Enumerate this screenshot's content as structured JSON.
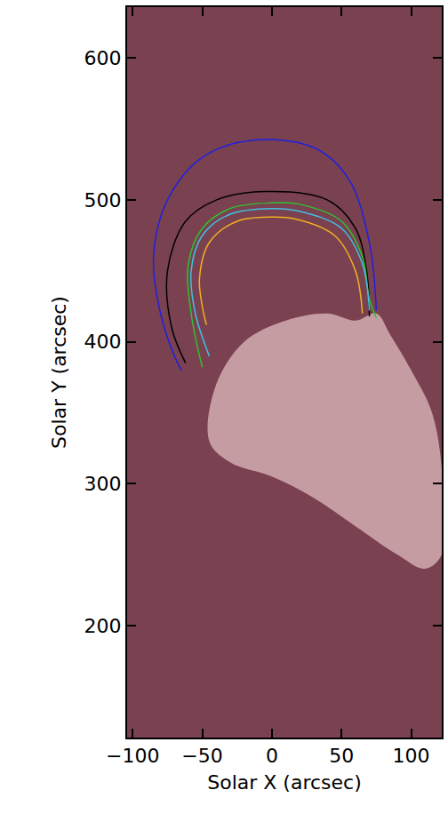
{
  "chart_data": {
    "type": "line",
    "x_label": "Solar X (arcsec)",
    "y_label": "Solar Y (arcsec)",
    "xlim": [
      -104,
      122
    ],
    "ylim": [
      121,
      636
    ],
    "xticks": [
      {
        "value": -100,
        "label": "−100"
      },
      {
        "value": -50,
        "label": "−50"
      },
      0,
      50,
      100
    ],
    "yticks": [
      200,
      300,
      400,
      500,
      600
    ],
    "grid": false,
    "series": [
      {
        "type": "area",
        "color": "#d9b3b8",
        "x": [
          -45,
          -40,
          -20,
          10,
          40,
          60,
          75,
          85,
          100,
          115,
          122,
          122,
          110,
          90,
          60,
          30,
          0,
          -30,
          -45
        ],
        "values": [
          330,
          370,
          400,
          415,
          420,
          415,
          420,
          405,
          380,
          350,
          310,
          250,
          240,
          250,
          270,
          290,
          305,
          315,
          330
        ]
      },
      {
        "color": "#2020e0",
        "x": [
          75,
          70,
          55,
          30,
          -15,
          -50,
          -75,
          -85,
          -80,
          -70,
          -65
        ],
        "values": [
          422,
          470,
          515,
          537,
          542,
          530,
          500,
          460,
          420,
          390,
          380
        ]
      },
      {
        "color": "#000000",
        "x": [
          70,
          68,
          60,
          40,
          -5,
          -40,
          -62,
          -75,
          -72,
          -62
        ],
        "values": [
          418,
          450,
          480,
          500,
          506,
          500,
          485,
          450,
          410,
          385
        ]
      },
      {
        "color": "#30c030",
        "x": [
          75,
          70,
          65,
          50,
          20,
          0,
          -30,
          -50,
          -60,
          -58,
          -50
        ],
        "values": [
          417,
          430,
          460,
          485,
          497,
          498,
          494,
          480,
          455,
          420,
          382
        ]
      },
      {
        "color": "#40c0e0",
        "x": [
          70,
          65,
          50,
          20,
          0,
          -30,
          -50,
          -58,
          -55,
          -45
        ],
        "values": [
          422,
          455,
          480,
          492,
          494,
          490,
          475,
          450,
          420,
          390
        ]
      },
      {
        "color": "#f0b020",
        "x": [
          65,
          60,
          45,
          15,
          0,
          -25,
          -45,
          -52,
          -50,
          -47
        ],
        "values": [
          420,
          450,
          475,
          487,
          488,
          485,
          470,
          445,
          425,
          412
        ]
      }
    ]
  }
}
